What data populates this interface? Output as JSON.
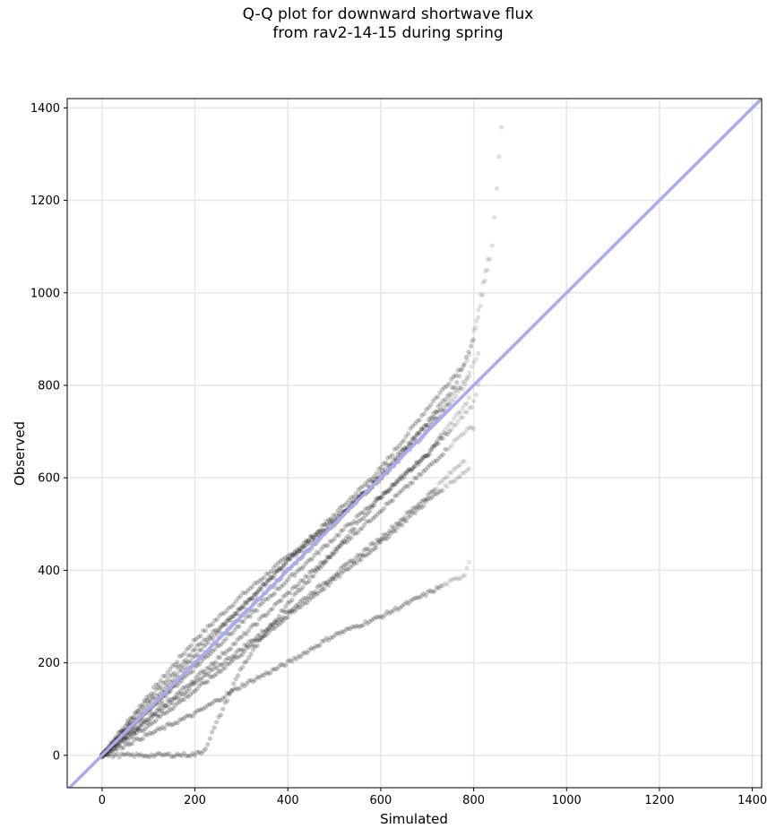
{
  "title_line1": "Q-Q plot for downward shortwave flux",
  "title_line2": "from rav2-14-15 during spring",
  "colors": {
    "points": "#000000",
    "reference_line": "#aaaaf0",
    "grid": "#e6e6e6"
  },
  "chart_data": {
    "type": "scatter",
    "xlabel": "Simulated",
    "ylabel": "Observed",
    "xlim": [
      -75,
      1420
    ],
    "ylim": [
      -70,
      1420
    ],
    "xticks": [
      0,
      200,
      400,
      600,
      800,
      1000,
      1200,
      1400
    ],
    "yticks": [
      0,
      200,
      400,
      600,
      800,
      1000,
      1200,
      1400
    ],
    "grid": true,
    "reference_line": {
      "slope": 1,
      "intercept": 0
    },
    "quantile_curves": [
      {
        "points": [
          [
            0,
            0
          ],
          [
            100,
            130
          ],
          [
            200,
            250
          ],
          [
            300,
            345
          ],
          [
            400,
            430
          ],
          [
            500,
            510
          ],
          [
            600,
            600
          ],
          [
            700,
            720
          ],
          [
            760,
            800
          ],
          [
            800,
            900
          ],
          [
            820,
            1000
          ],
          [
            840,
            1100
          ],
          [
            860,
            1355
          ]
        ]
      },
      {
        "points": [
          [
            0,
            0
          ],
          [
            100,
            120
          ],
          [
            200,
            230
          ],
          [
            300,
            320
          ],
          [
            400,
            420
          ],
          [
            500,
            520
          ],
          [
            600,
            620
          ],
          [
            700,
            750
          ],
          [
            790,
            860
          ],
          [
            830,
            1070
          ]
        ]
      },
      {
        "points": [
          [
            0,
            0
          ],
          [
            100,
            110
          ],
          [
            200,
            215
          ],
          [
            300,
            320
          ],
          [
            400,
            420
          ],
          [
            500,
            505
          ],
          [
            600,
            600
          ],
          [
            700,
            700
          ],
          [
            780,
            800
          ],
          [
            810,
            870
          ]
        ]
      },
      {
        "points": [
          [
            0,
            0
          ],
          [
            100,
            100
          ],
          [
            200,
            200
          ],
          [
            300,
            300
          ],
          [
            400,
            400
          ],
          [
            500,
            500
          ],
          [
            600,
            610
          ],
          [
            700,
            715
          ],
          [
            790,
            820
          ]
        ]
      },
      {
        "points": [
          [
            0,
            0
          ],
          [
            100,
            95
          ],
          [
            200,
            190
          ],
          [
            300,
            285
          ],
          [
            400,
            380
          ],
          [
            500,
            470
          ],
          [
            600,
            560
          ],
          [
            700,
            650
          ],
          [
            800,
            760
          ],
          [
            810,
            800
          ]
        ]
      },
      {
        "points": [
          [
            0,
            0
          ],
          [
            100,
            80
          ],
          [
            200,
            165
          ],
          [
            300,
            255
          ],
          [
            400,
            350
          ],
          [
            500,
            440
          ],
          [
            600,
            530
          ],
          [
            700,
            620
          ],
          [
            780,
            700
          ],
          [
            800,
            710
          ]
        ]
      },
      {
        "points": [
          [
            0,
            0
          ],
          [
            100,
            75
          ],
          [
            200,
            155
          ],
          [
            300,
            230
          ],
          [
            400,
            310
          ],
          [
            500,
            390
          ],
          [
            600,
            470
          ],
          [
            700,
            560
          ],
          [
            780,
            640
          ]
        ]
      },
      {
        "points": [
          [
            0,
            0
          ],
          [
            100,
            65
          ],
          [
            200,
            140
          ],
          [
            300,
            220
          ],
          [
            400,
            300
          ],
          [
            500,
            380
          ],
          [
            600,
            460
          ],
          [
            700,
            550
          ],
          [
            790,
            620
          ]
        ]
      },
      {
        "points": [
          [
            0,
            0
          ],
          [
            100,
            45
          ],
          [
            200,
            90
          ],
          [
            300,
            150
          ],
          [
            400,
            200
          ],
          [
            500,
            260
          ],
          [
            600,
            300
          ],
          [
            700,
            350
          ],
          [
            780,
            390
          ],
          [
            790,
            420
          ]
        ]
      },
      {
        "points": [
          [
            0,
            0
          ],
          [
            100,
            0
          ],
          [
            200,
            2
          ],
          [
            220,
            10
          ],
          [
            260,
            100
          ],
          [
            300,
            190
          ],
          [
            400,
            330
          ],
          [
            500,
            440
          ],
          [
            600,
            560
          ],
          [
            700,
            650
          ],
          [
            790,
            770
          ]
        ]
      }
    ]
  }
}
